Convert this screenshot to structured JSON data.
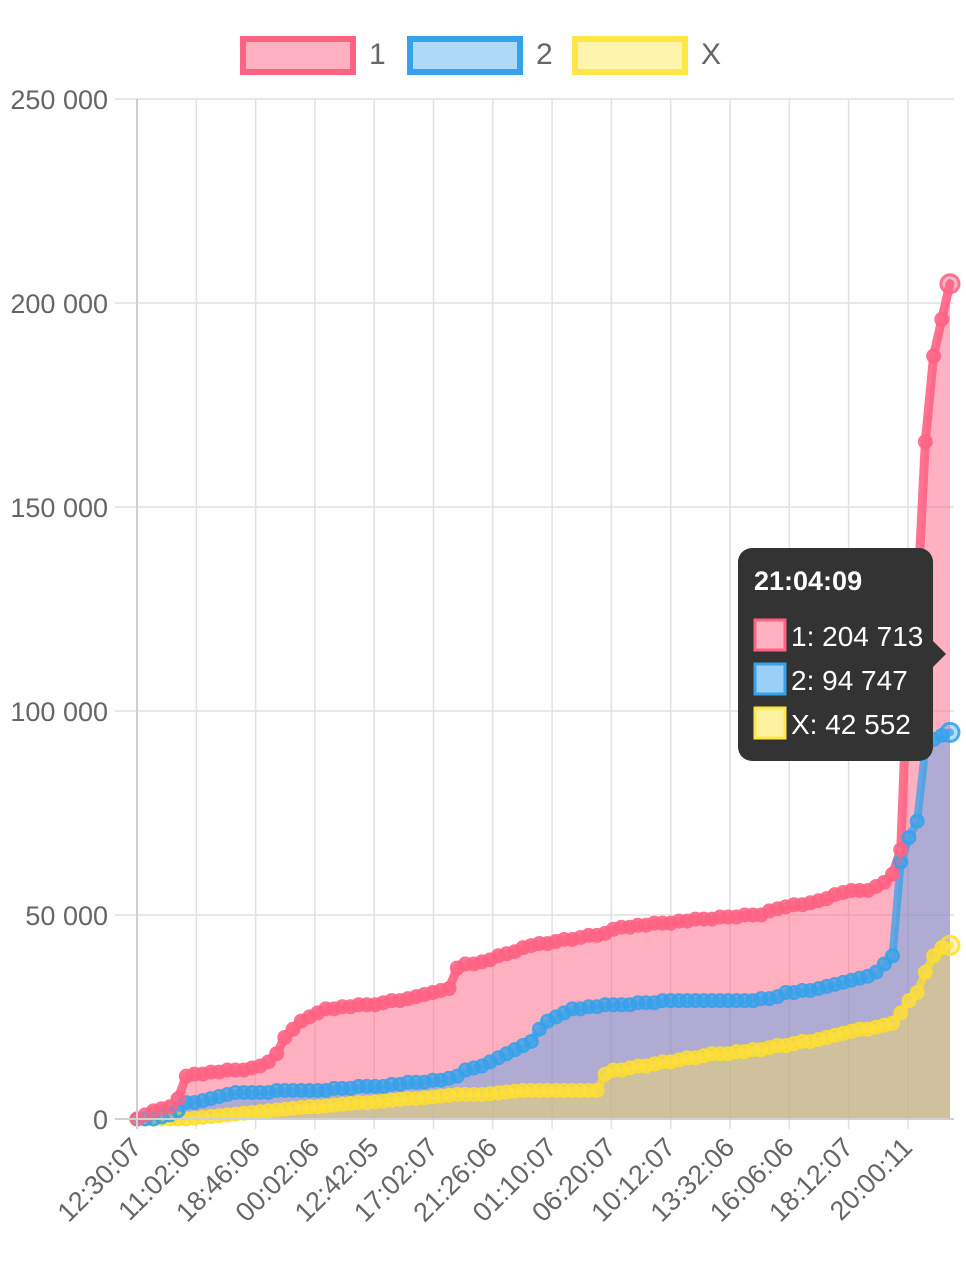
{
  "chart_data": {
    "type": "area",
    "title": "",
    "xlabel": "",
    "ylabel": "",
    "ylim": [
      0,
      250000
    ],
    "yticks": [
      "0",
      "50 000",
      "100 000",
      "150 000",
      "200 000",
      "250 000"
    ],
    "ytick_values": [
      0,
      50000,
      100000,
      150000,
      200000,
      250000
    ],
    "xticks": [
      "12:30:07",
      "11:02:06",
      "18:46:06",
      "00:02:06",
      "12:42:05",
      "17:02:07",
      "21:26:06",
      "01:10:07",
      "06:20:07",
      "10:12:07",
      "13:32:06",
      "16:06:06",
      "18:12:07",
      "20:00:11"
    ],
    "grid": true,
    "legend_position": "top",
    "x_count": 100,
    "series": [
      {
        "name": "1",
        "color": "#ff6384",
        "fill": "rgba(255,99,132,0.5)",
        "values": [
          0,
          1000,
          2000,
          2500,
          3000,
          5000,
          10500,
          11000,
          11000,
          11500,
          11500,
          12000,
          12000,
          12000,
          12500,
          13000,
          14000,
          16000,
          20000,
          22000,
          24000,
          25000,
          26000,
          27000,
          27000,
          27500,
          27500,
          28000,
          28000,
          28000,
          28500,
          29000,
          29000,
          29500,
          30000,
          30500,
          31000,
          31500,
          32000,
          37000,
          38000,
          38000,
          38500,
          39000,
          40000,
          40500,
          41000,
          42000,
          42500,
          43000,
          43000,
          43500,
          44000,
          44000,
          44500,
          45000,
          45000,
          45500,
          46500,
          47000,
          47000,
          47500,
          47500,
          48000,
          48000,
          48000,
          48500,
          48500,
          49000,
          49000,
          49000,
          49500,
          49500,
          49500,
          50000,
          50000,
          50000,
          51000,
          51500,
          52000,
          52500,
          52500,
          53000,
          53500,
          54000,
          55000,
          55500,
          56000,
          56000,
          56000,
          57000,
          58000,
          60000,
          66000,
          117000,
          126000,
          166000,
          187000,
          196000,
          204713
        ]
      },
      {
        "name": "2",
        "color": "#36a2eb",
        "fill": "rgba(54,162,235,0.4)",
        "values": [
          0,
          0,
          0,
          500,
          1000,
          2000,
          4000,
          4000,
          4500,
          5000,
          5500,
          6000,
          6500,
          6500,
          6500,
          6500,
          6500,
          7000,
          7000,
          7000,
          7000,
          7000,
          7000,
          7000,
          7500,
          7500,
          7500,
          8000,
          8000,
          8000,
          8000,
          8500,
          8500,
          9000,
          9000,
          9000,
          9500,
          9500,
          10000,
          10500,
          12000,
          12500,
          13000,
          14000,
          15000,
          16000,
          17000,
          18000,
          19000,
          22000,
          24000,
          25000,
          26000,
          27000,
          27000,
          27500,
          27500,
          28000,
          28000,
          28000,
          28000,
          28500,
          28500,
          28500,
          29000,
          29000,
          29000,
          29000,
          29000,
          29000,
          29000,
          29000,
          29000,
          29000,
          29000,
          29000,
          29500,
          29500,
          30000,
          31000,
          31000,
          31500,
          31500,
          32000,
          32500,
          33000,
          33500,
          34000,
          34500,
          35000,
          36000,
          38000,
          40000,
          63000,
          69000,
          73000,
          91000,
          93000,
          94000,
          94747
        ]
      },
      {
        "name": "X",
        "color": "#ffdf2e",
        "fill": "rgba(255,226,80,0.4)",
        "values": [
          0,
          0,
          0,
          0,
          0,
          0,
          0,
          200,
          400,
          600,
          800,
          1000,
          1200,
          1400,
          1600,
          1800,
          2000,
          2200,
          2400,
          2600,
          2800,
          3000,
          3000,
          3200,
          3400,
          3600,
          3800,
          4000,
          4000,
          4200,
          4400,
          4600,
          4800,
          5000,
          5000,
          5200,
          5400,
          5600,
          5800,
          6000,
          6000,
          6000,
          6000,
          6200,
          6400,
          6600,
          6800,
          7000,
          7000,
          7000,
          7000,
          7000,
          7000,
          7000,
          7000,
          7000,
          7000,
          11000,
          12000,
          12000,
          12500,
          13000,
          13000,
          13500,
          14000,
          14000,
          14500,
          15000,
          15000,
          15500,
          16000,
          16000,
          16000,
          16500,
          16500,
          17000,
          17000,
          17500,
          18000,
          18000,
          18500,
          19000,
          19000,
          19500,
          20000,
          20500,
          21000,
          21500,
          22000,
          22000,
          22500,
          23000,
          23500,
          26000,
          29000,
          31000,
          36000,
          40000,
          42000,
          42552
        ]
      }
    ]
  },
  "legend": [
    {
      "label": "1",
      "border": "#ff6384",
      "fill": "rgba(255,99,132,0.5)"
    },
    {
      "label": "2",
      "border": "#36a2eb",
      "fill": "rgba(54,162,235,0.4)"
    },
    {
      "label": "X",
      "border": "#ffe74a",
      "fill": "rgba(255,236,90,0.5)"
    }
  ],
  "tooltip": {
    "title": "21:04:09",
    "items": [
      {
        "text": "1: 204 713",
        "border": "#ff6384",
        "fill": "#ffb1c1"
      },
      {
        "text": "2: 94 747",
        "border": "#36a2eb",
        "fill": "#9ad0f5"
      },
      {
        "text": "X: 42 552",
        "border": "#ffe74a",
        "fill": "#fff3a0"
      }
    ]
  }
}
